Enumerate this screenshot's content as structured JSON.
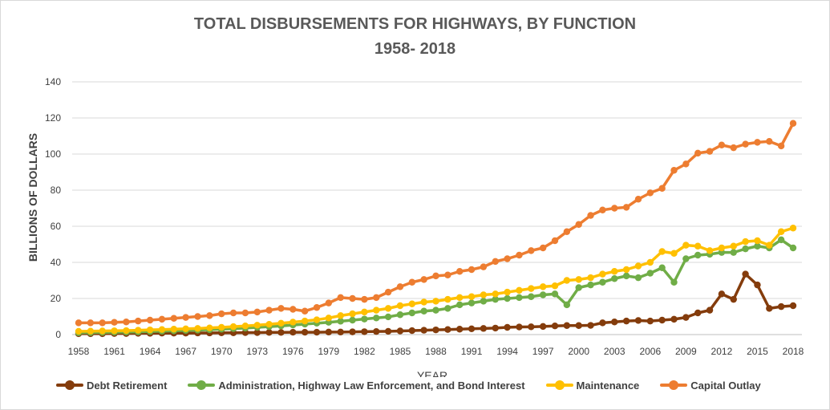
{
  "chart_data": {
    "type": "line",
    "title": "TOTAL DISBURSEMENTS FOR HIGHWAYS, BY FUNCTION",
    "subtitle": "1958- 2018",
    "xlabel": "YEAR",
    "ylabel": "BILLIONS OF DOLLARS",
    "ylim": [
      0,
      140
    ],
    "yticks": [
      0,
      20,
      40,
      60,
      80,
      100,
      120,
      140
    ],
    "xlim": [
      1958,
      2018
    ],
    "xtick_labels": [
      "1958",
      "1961",
      "1964",
      "1967",
      "1970",
      "1973",
      "1976",
      "1979",
      "1982",
      "1985",
      "1988",
      "1991",
      "1994",
      "1997",
      "2000",
      "2003",
      "2006",
      "2009",
      "2012",
      "2015",
      "2018"
    ],
    "grid": true,
    "legend_position": "bottom",
    "x": [
      1958,
      1959,
      1960,
      1961,
      1962,
      1963,
      1964,
      1965,
      1966,
      1967,
      1968,
      1969,
      1970,
      1971,
      1972,
      1973,
      1974,
      1975,
      1976,
      1977,
      1978,
      1979,
      1980,
      1981,
      1982,
      1983,
      1984,
      1985,
      1986,
      1987,
      1988,
      1989,
      1990,
      1991,
      1992,
      1993,
      1994,
      1995,
      1996,
      1997,
      1998,
      1999,
      2000,
      2001,
      2002,
      2003,
      2004,
      2005,
      2006,
      2007,
      2008,
      2009,
      2010,
      2011,
      2012,
      2013,
      2014,
      2015,
      2016,
      2017,
      2018
    ],
    "series": [
      {
        "name": "Debt Retirement",
        "color": "#843c0c",
        "values": [
          0.5,
          0.5,
          0.5,
          0.6,
          0.6,
          0.7,
          0.7,
          0.8,
          0.8,
          0.8,
          0.9,
          0.9,
          1.0,
          1.0,
          1.1,
          1.1,
          1.2,
          1.2,
          1.3,
          1.3,
          1.3,
          1.4,
          1.4,
          1.5,
          1.6,
          1.7,
          1.8,
          2.0,
          2.2,
          2.4,
          2.6,
          2.8,
          3.0,
          3.2,
          3.4,
          3.6,
          4.0,
          4.2,
          4.3,
          4.5,
          4.8,
          5.0,
          5.0,
          5.1,
          6.5,
          7.0,
          7.5,
          7.8,
          7.5,
          8.0,
          8.5,
          9.5,
          12.0,
          13.5,
          22.5,
          19.5,
          33.5,
          27.5,
          14.5,
          15.5,
          16.0
        ]
      },
      {
        "name": "Administration, Highway Law Enforcement, and Bond Interest",
        "color": "#70ad47",
        "values": [
          1.0,
          1.1,
          1.2,
          1.3,
          1.4,
          1.5,
          1.7,
          1.9,
          2.1,
          2.3,
          2.5,
          2.7,
          3.0,
          3.3,
          3.6,
          4.0,
          4.4,
          4.8,
          5.3,
          5.8,
          6.3,
          6.8,
          7.4,
          8.0,
          8.6,
          9.2,
          9.8,
          11.0,
          12.0,
          13.0,
          13.5,
          14.5,
          16.5,
          17.5,
          18.5,
          19.5,
          20.0,
          20.5,
          21.0,
          22.0,
          22.5,
          16.5,
          26.0,
          27.5,
          29.0,
          31.0,
          32.5,
          31.5,
          34.0,
          37.0,
          29.0,
          42.0,
          44.0,
          44.5,
          45.5,
          45.5,
          47.5,
          49.0,
          48.0,
          52.5,
          48.0
        ]
      },
      {
        "name": "Maintenance",
        "color": "#ffc000",
        "values": [
          1.8,
          1.9,
          2.0,
          2.1,
          2.2,
          2.4,
          2.6,
          2.8,
          3.0,
          3.2,
          3.4,
          3.7,
          4.0,
          4.4,
          4.8,
          5.2,
          5.7,
          6.3,
          6.9,
          7.5,
          8.2,
          9.2,
          10.5,
          11.5,
          12.5,
          13.5,
          14.5,
          16.0,
          17.0,
          18.0,
          18.5,
          19.5,
          20.5,
          21.0,
          22.0,
          22.5,
          23.5,
          24.5,
          25.5,
          26.5,
          27.0,
          30.0,
          30.5,
          31.5,
          33.5,
          35.0,
          36.0,
          38.0,
          40.0,
          46.0,
          45.0,
          49.5,
          49.0,
          46.5,
          48.0,
          49.0,
          51.5,
          52.0,
          49.5,
          57.0,
          59.0
        ]
      },
      {
        "name": "Capital Outlay",
        "color": "#ed7d31",
        "values": [
          6.5,
          6.5,
          6.5,
          6.8,
          7.0,
          7.5,
          8.0,
          8.5,
          9.0,
          9.5,
          10.0,
          10.5,
          11.5,
          12.0,
          12.0,
          12.5,
          13.5,
          14.5,
          14.0,
          13.0,
          15.0,
          17.5,
          20.5,
          20.0,
          19.5,
          20.5,
          23.5,
          26.5,
          29.0,
          30.5,
          32.5,
          33.0,
          35.0,
          36.0,
          37.5,
          40.5,
          42.0,
          44.0,
          46.5,
          48.0,
          52.0,
          57.0,
          61.0,
          66.0,
          69.0,
          70.0,
          70.5,
          75.0,
          78.5,
          81.0,
          91.0,
          94.5,
          100.5,
          101.5,
          105.0,
          103.5,
          105.5,
          106.5,
          107.0,
          104.5,
          117.0
        ]
      }
    ]
  }
}
